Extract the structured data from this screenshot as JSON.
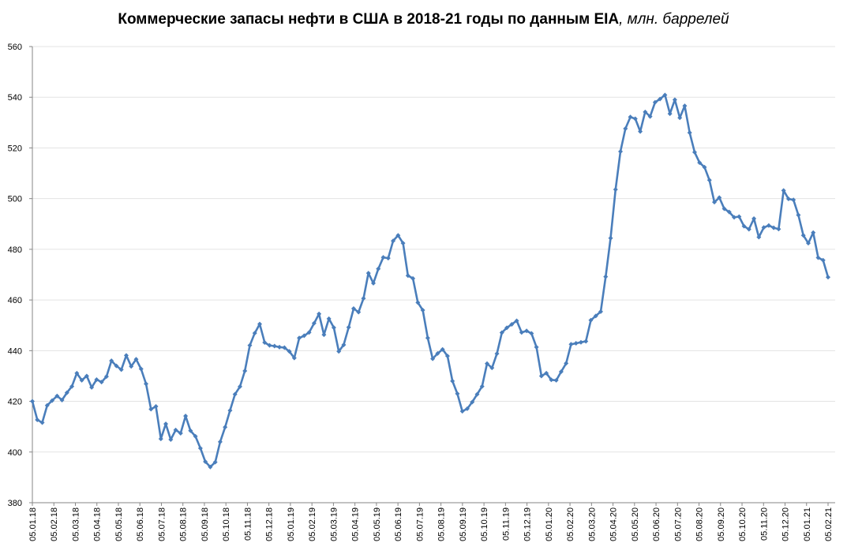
{
  "chart_data": {
    "type": "line",
    "title": "Коммерческие запасы нефти в США в 2018-21 годы по данным EIA",
    "subtitle": ", млн. баррелей",
    "xlabel": "",
    "ylabel": "",
    "ylim": [
      380,
      560
    ],
    "yticks": [
      "380",
      "400",
      "420",
      "440",
      "460",
      "480",
      "500",
      "520",
      "540",
      "560"
    ],
    "grid": true,
    "legend": "none",
    "line_color": "#4a7ebb",
    "xticks": [
      "05.01.18",
      "05.02.18",
      "05.03.18",
      "05.04.18",
      "05.05.18",
      "05.06.18",
      "05.07.18",
      "05.08.18",
      "05.09.18",
      "05.10.18",
      "05.11.18",
      "05.12.18",
      "05.01.19",
      "05.02.19",
      "05.03.19",
      "05.04.19",
      "05.05.19",
      "05.06.19",
      "05.07.19",
      "05.08.19",
      "05.09.19",
      "05.10.19",
      "05.11.19",
      "05.12.19",
      "05.01.20",
      "05.02.20",
      "05.03.20",
      "05.04.20",
      "05.05.20",
      "05.06.20",
      "05.07.20",
      "05.08.20",
      "05.09.20",
      "05.10.20",
      "05.11.20",
      "05.12.20",
      "05.01.21",
      "05.02.21"
    ],
    "series": [
      {
        "name": "Коммерческие запасы нефти",
        "frequency": "weekly",
        "values": [
          420.0,
          412.7,
          411.6,
          418.4,
          420.3,
          422.1,
          420.5,
          423.4,
          425.9,
          431.1,
          428.3,
          430.0,
          425.5,
          428.6,
          427.6,
          429.8,
          436.0,
          434.0,
          432.5,
          438.1,
          433.8,
          436.6,
          432.8,
          426.9,
          416.9,
          418.0,
          405.2,
          411.1,
          404.9,
          408.7,
          407.4,
          414.2,
          408.4,
          406.2,
          401.5,
          396.2,
          394.1,
          396.0,
          404.0,
          409.8,
          416.4,
          422.8,
          425.8,
          432.0,
          442.1,
          446.9,
          450.5,
          443.2,
          442.1,
          441.8,
          441.4,
          441.2,
          439.7,
          437.1,
          445.0,
          445.9,
          447.2,
          450.8,
          454.5,
          446.3,
          452.6,
          449.1,
          439.7,
          442.3,
          449.2,
          456.6,
          455.2,
          460.6,
          470.6,
          466.6,
          472.3,
          476.8,
          476.5,
          483.3,
          485.5,
          482.4,
          469.6,
          468.5,
          459.0,
          456.0,
          445.0,
          436.8,
          438.9,
          440.5,
          437.9,
          428.0,
          423.0,
          416.1,
          417.1,
          419.7,
          422.8,
          425.9,
          434.9,
          433.2,
          438.8,
          447.1,
          449.0,
          450.4,
          451.8,
          447.2,
          447.8,
          446.8,
          441.4,
          430.0,
          431.1,
          428.5,
          428.3,
          431.7,
          435.0,
          442.5,
          442.9,
          443.3,
          443.7,
          452.0,
          453.7,
          455.4,
          469.2,
          484.4,
          503.6,
          518.6,
          527.6,
          532.2,
          531.5,
          526.5,
          534.2,
          532.4,
          538.0,
          539.3,
          540.9,
          533.5,
          539.0,
          531.9,
          536.6,
          526.0,
          518.3,
          514.2,
          512.4,
          507.3,
          498.6,
          500.4,
          496.0,
          494.7,
          492.6,
          492.9,
          489.1,
          487.9,
          492.1,
          484.8,
          488.6,
          489.4,
          488.5,
          488.0,
          503.2,
          499.9,
          499.5,
          493.5,
          485.5,
          482.4,
          486.6,
          476.7,
          475.7,
          469.0
        ]
      }
    ]
  }
}
